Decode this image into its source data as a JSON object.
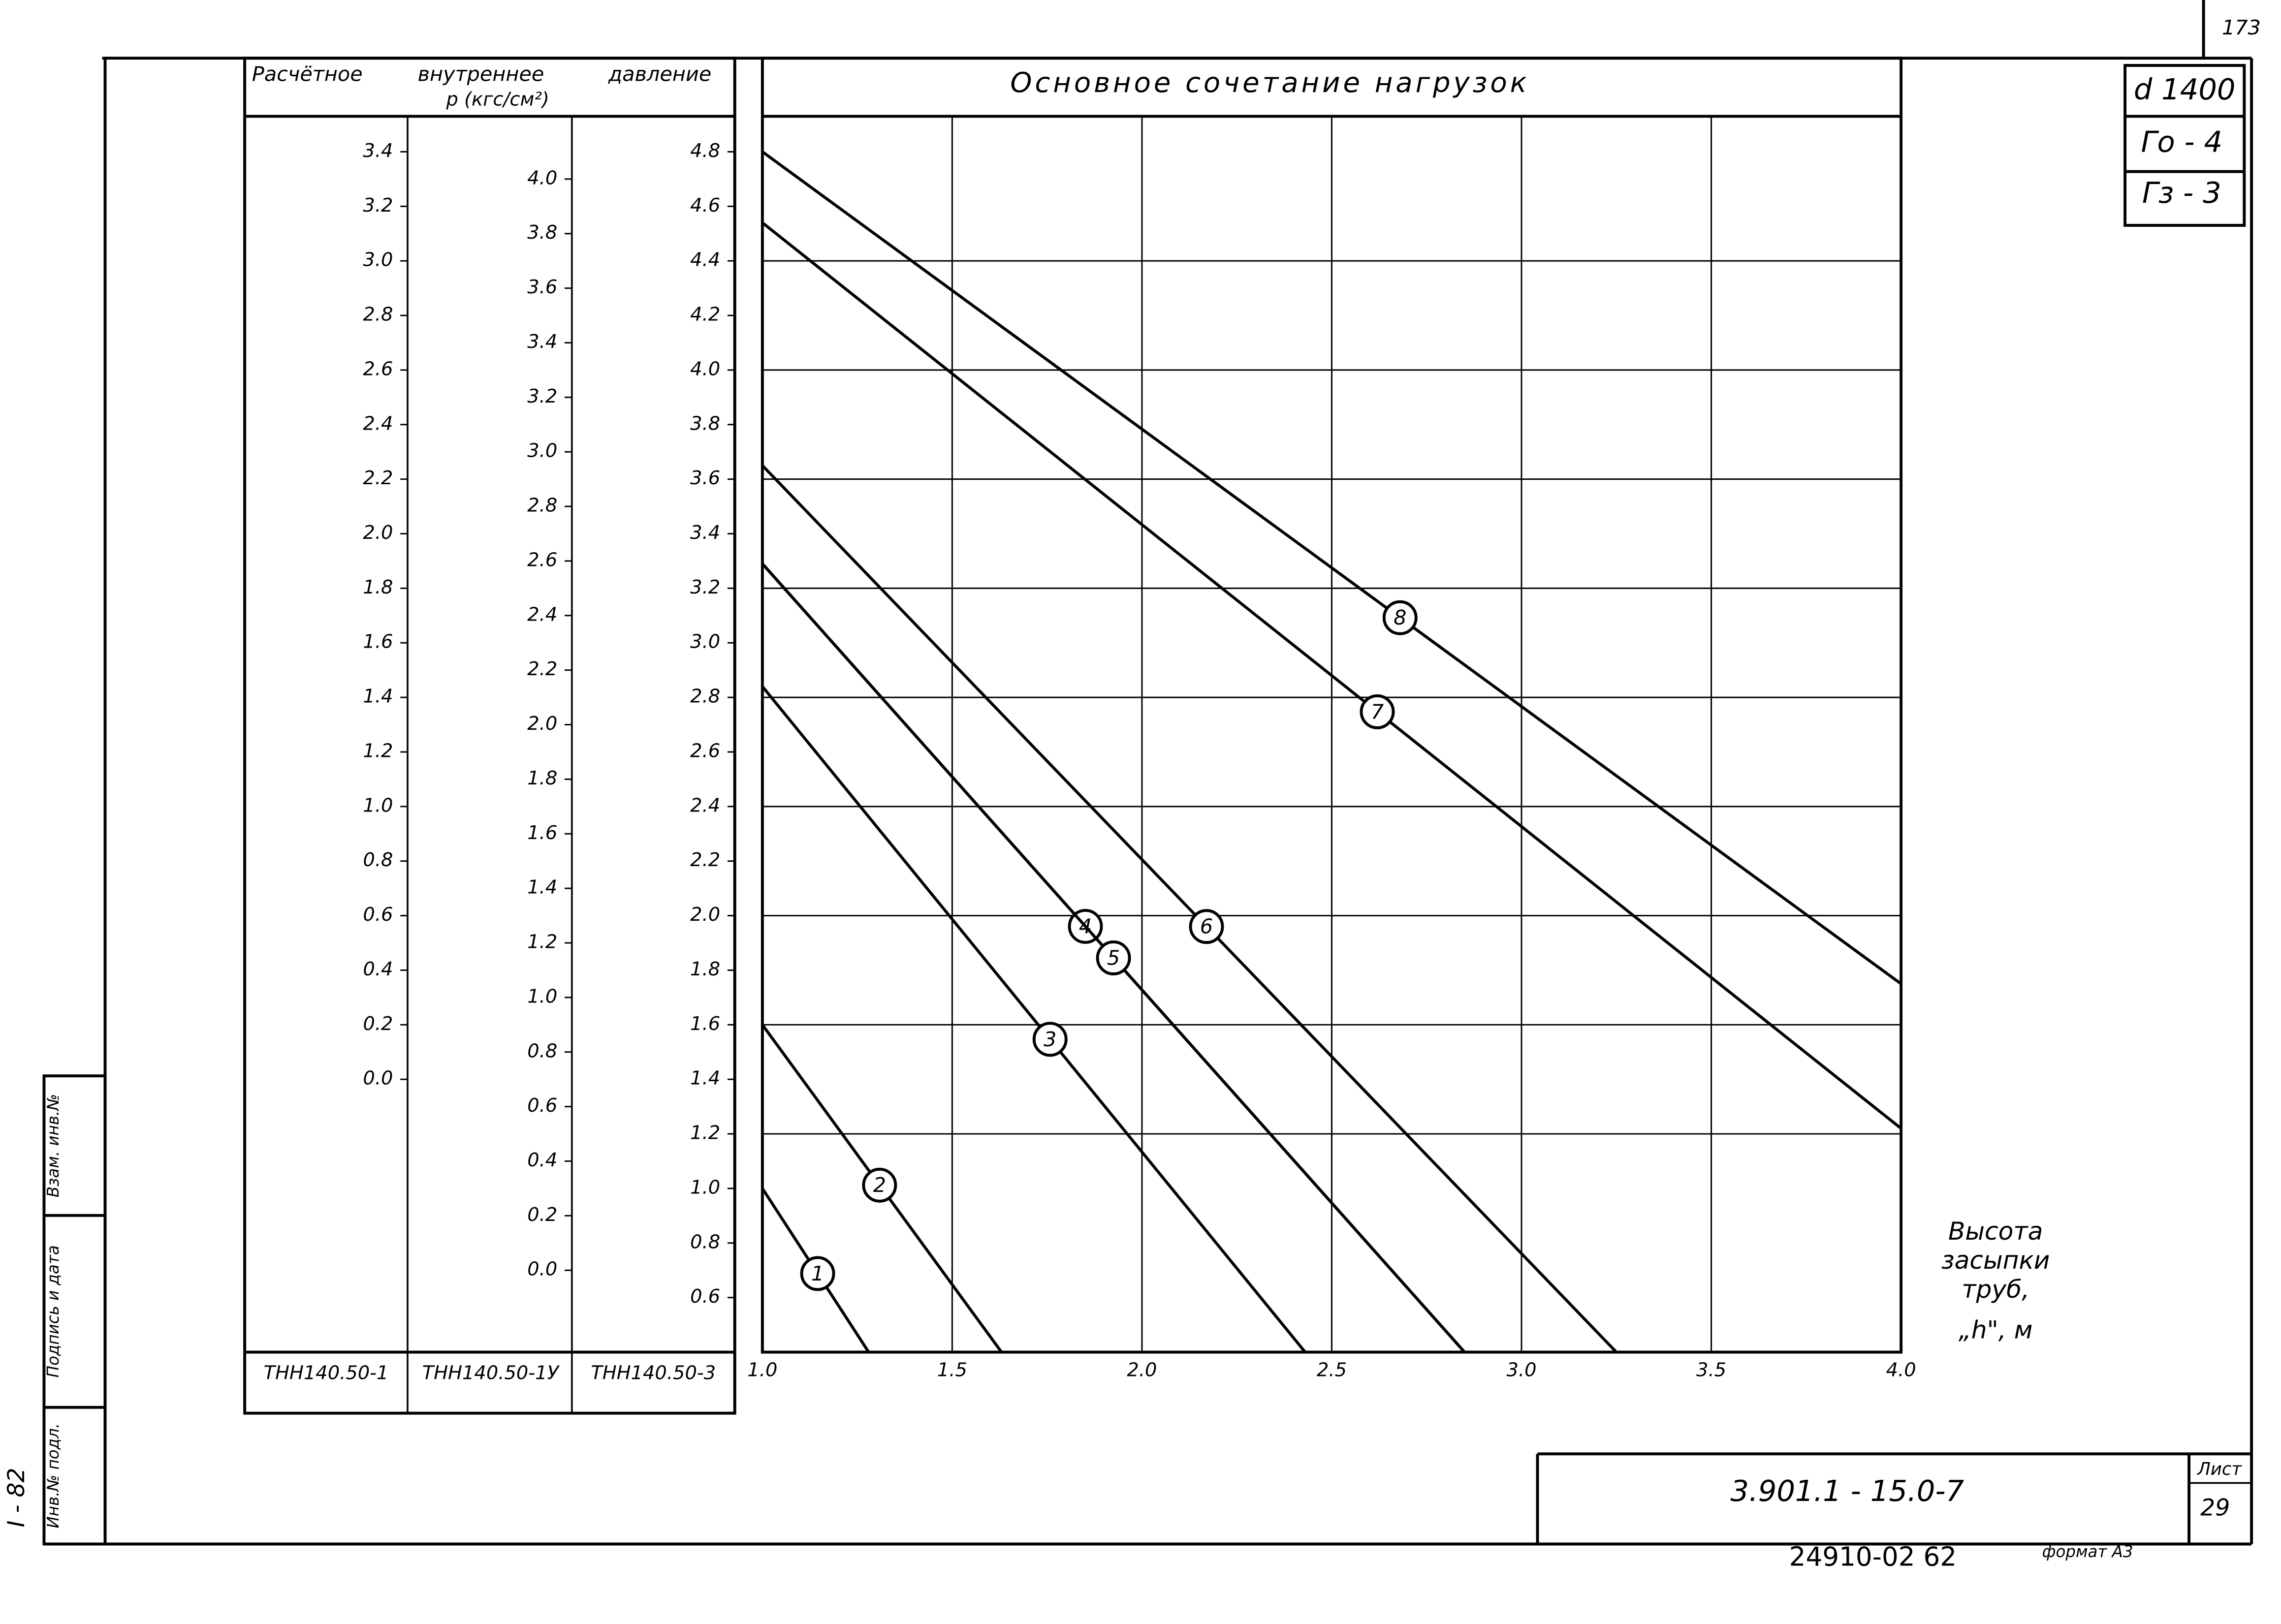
{
  "chart_data": {
    "type": "line",
    "title": "Основное сочетание нагрузок",
    "xlabel": [
      "Высота",
      "засыпки",
      "труб,",
      "„h\", м"
    ],
    "column_headers": [
      "Расчётное",
      "внутреннее",
      "давление",
      "p (кгс/см²)"
    ],
    "column_footers": [
      "ТНН140.50-1",
      "ТНН140.50-1У",
      "ТНН140.50-3"
    ],
    "xlim": [
      1,
      4
    ],
    "xticks": [
      {
        "value": 1,
        "label": "1.0"
      },
      1.5,
      {
        "value": 2,
        "label": "2.0"
      },
      2.5,
      {
        "value": 3,
        "label": "3.0"
      },
      3.5,
      {
        "value": 4,
        "label": "4.0"
      }
    ],
    "ylim": [
      0.4,
      4.93
    ],
    "yticks": [
      0.6,
      0.8,
      {
        "value": 1,
        "label": "1.0"
      },
      1.2,
      1.4,
      1.6,
      1.8,
      {
        "value": 2,
        "label": "2.0"
      },
      2.2,
      2.4,
      2.6,
      2.8,
      {
        "value": 3,
        "label": "3.0"
      },
      3.2,
      3.4,
      3.6,
      3.8,
      {
        "value": 4,
        "label": "4.0"
      },
      4.2,
      4.4,
      4.6,
      4.8
    ],
    "y2lim": [
      -0.3,
      4.23
    ],
    "y2ticks": [
      {
        "value": 0,
        "label": "0.0"
      },
      0.2,
      0.4,
      0.6,
      0.8,
      {
        "value": 1,
        "label": "1.0"
      },
      1.2,
      1.4,
      1.6,
      1.8,
      {
        "value": 2,
        "label": "2.0"
      },
      2.2,
      2.4,
      2.6,
      2.8,
      {
        "value": 3,
        "label": "3.0"
      },
      3.2,
      3.4,
      3.6,
      3.8,
      {
        "value": 4,
        "label": "4.0"
      }
    ],
    "y3lim": [
      -1.0,
      3.53
    ],
    "y3ticks": [
      {
        "value": 0,
        "label": "0.0"
      },
      0.2,
      0.4,
      0.6,
      0.8,
      {
        "value": 1,
        "label": "1.0"
      },
      1.2,
      1.4,
      1.6,
      1.8,
      {
        "value": 2,
        "label": "2.0"
      },
      2.2,
      2.4,
      2.6,
      2.8,
      {
        "value": 3,
        "label": "3.0"
      },
      3.2,
      3.4
    ],
    "grid": true,
    "series": [
      {
        "name": "1",
        "color": "#000000",
        "x": [
          1.0,
          1.28
        ],
        "values": [
          1.0,
          0.4
        ]
      },
      {
        "name": "2",
        "color": "#000000",
        "x": [
          1.0,
          1.63
        ],
        "values": [
          1.6,
          0.4
        ]
      },
      {
        "name": "3",
        "color": "#000000",
        "x": [
          1.0,
          2.43
        ],
        "values": [
          2.84,
          0.4
        ]
      },
      {
        "name": "4",
        "color": "#000000",
        "x": [
          1.0,
          2.85
        ],
        "values": [
          3.29,
          0.4
        ]
      },
      {
        "name": "5",
        "color": "#000000",
        "x": [
          1.0,
          2.85
        ],
        "values": [
          3.29,
          0.4
        ]
      },
      {
        "name": "6",
        "color": "#000000",
        "x": [
          1.0,
          3.25
        ],
        "values": [
          3.65,
          0.4
        ]
      },
      {
        "name": "7",
        "color": "#000000",
        "x": [
          1.0,
          4.0
        ],
        "values": [
          4.54,
          1.22
        ]
      },
      {
        "name": "8",
        "color": "#000000",
        "x": [
          1.0,
          4.0
        ],
        "values": [
          4.8,
          1.75
        ]
      }
    ]
  },
  "frame": {
    "sheet_top": "173",
    "diameter": "d 1400",
    "go": "Гo - 4",
    "gz": "Гз - 3",
    "code": "3.901.1 - 15.0-7",
    "sheet_label": "Лист",
    "sheet": "29",
    "archive": "24910-02  62",
    "format": "формат А3",
    "side": [
      "Инв.№ подл.",
      "Подпись и дата",
      "Взам. инв.№"
    ],
    "series_code": "I - 82"
  }
}
